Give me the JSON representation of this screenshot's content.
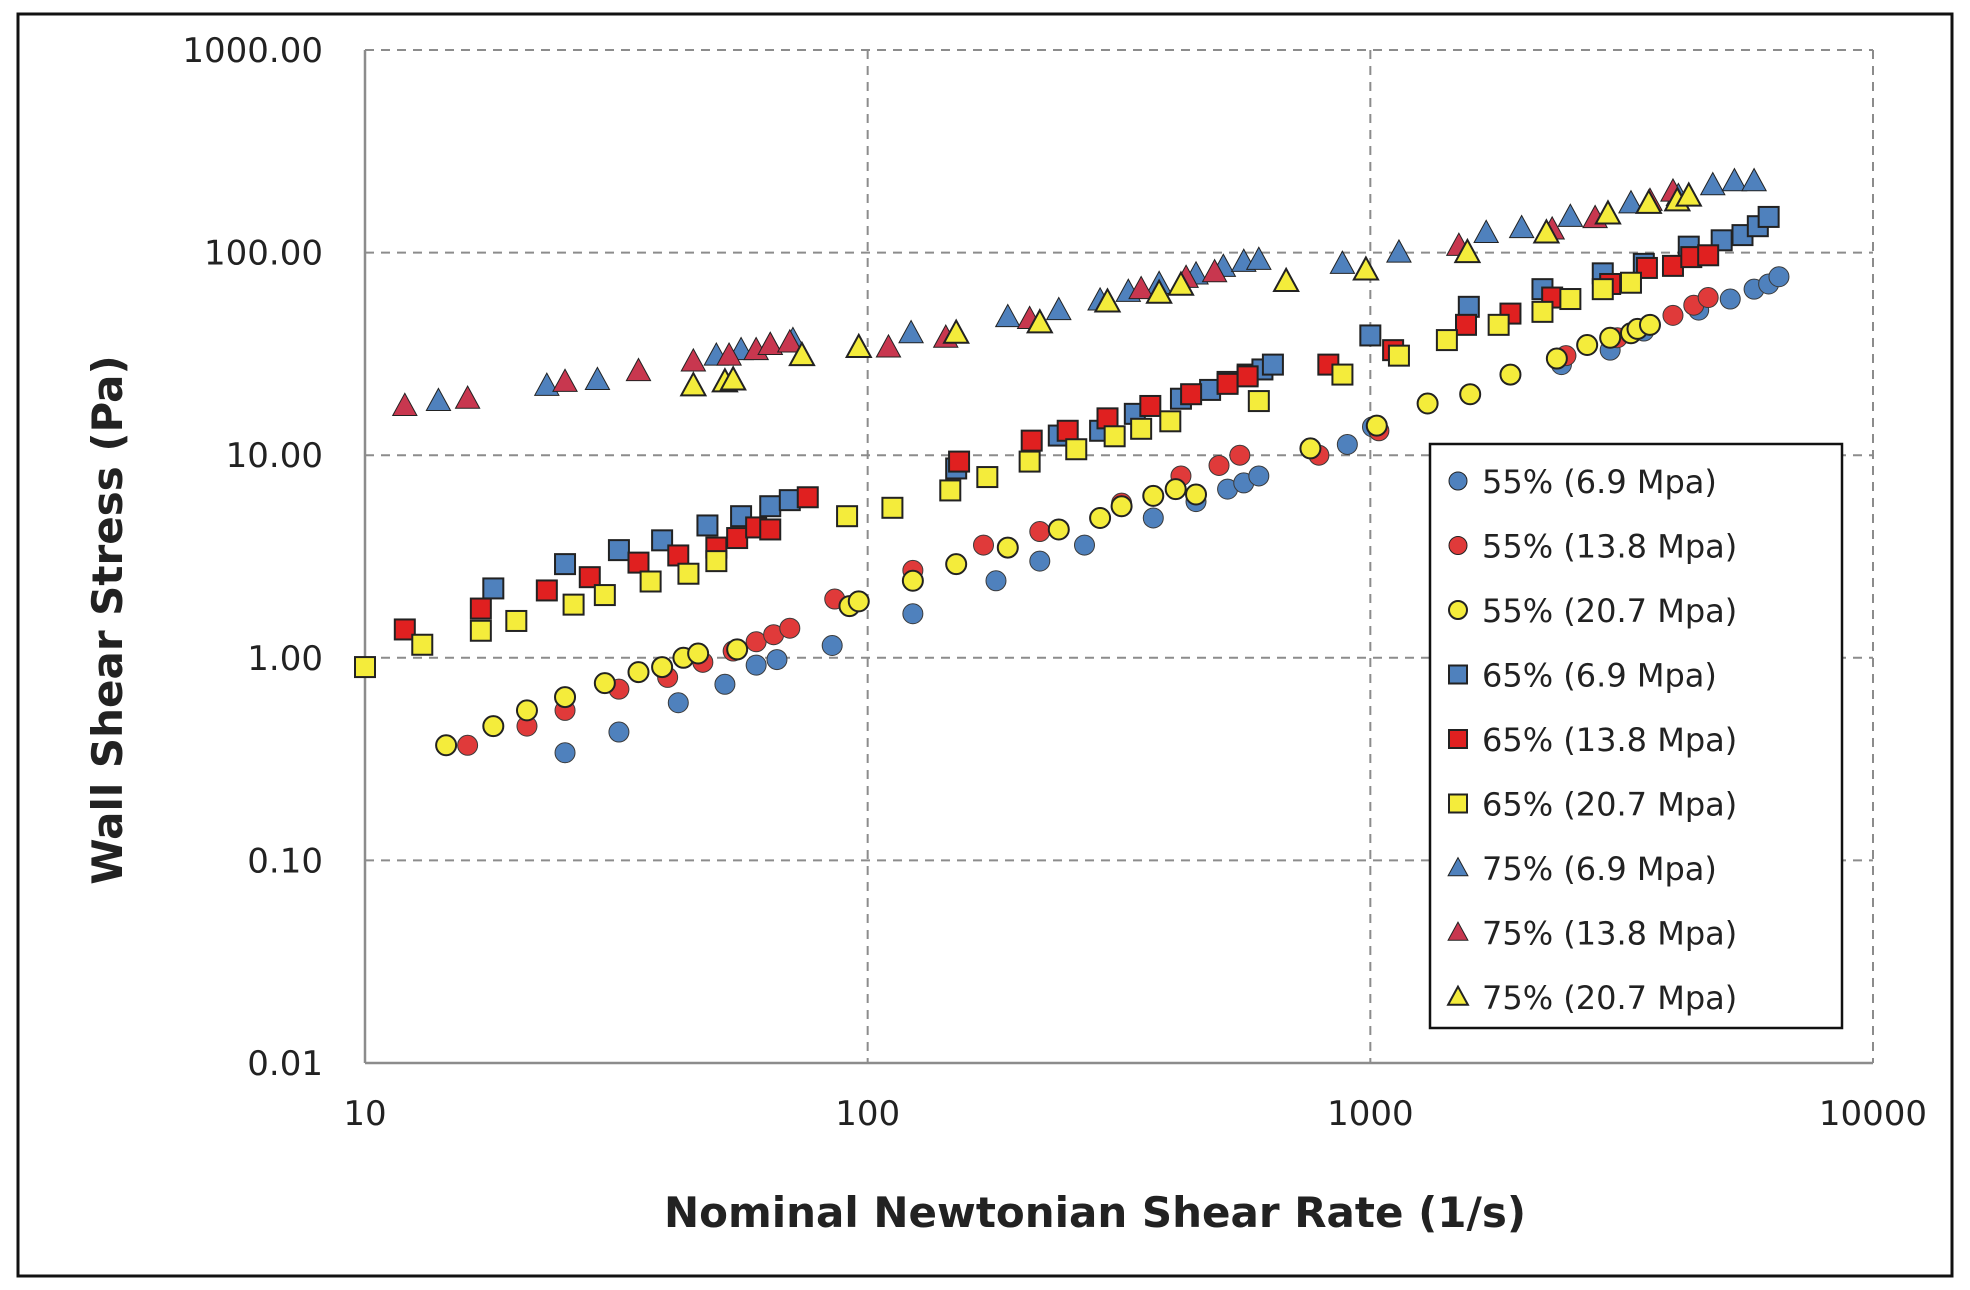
{
  "chart_data": {
    "type": "scatter",
    "title": "",
    "xlabel": "Nominal Newtonian Shear Rate (1/s)",
    "ylabel": "Wall Shear Stress (Pa)",
    "xscale": "log",
    "yscale": "log",
    "xlim": [
      10,
      10000
    ],
    "ylim": [
      0.01,
      1000
    ],
    "x_ticks": [
      "10",
      "100",
      "1000",
      "10000"
    ],
    "y_ticks": [
      "0.01",
      "0.10",
      "1.00",
      "10.00",
      "100.00",
      "1000.00"
    ],
    "grid": true,
    "legend_position": "right-center",
    "series": [
      {
        "name": "55% (6.9 Mpa)",
        "marker": "circle",
        "color": "#4f81bd",
        "x": [
          25,
          32,
          42,
          52,
          60,
          66,
          85,
          123,
          180,
          220,
          270,
          370,
          450,
          520,
          560,
          600,
          900,
          1010,
          2400,
          3000,
          3500,
          4500,
          5200,
          5800,
          6200,
          6500
        ],
        "y": [
          0.34,
          0.43,
          0.6,
          0.74,
          0.92,
          0.98,
          1.15,
          1.65,
          2.4,
          3.0,
          3.6,
          4.9,
          5.9,
          6.8,
          7.3,
          7.9,
          11.3,
          13.8,
          28,
          33,
          41,
          52,
          59,
          66,
          70,
          76
        ]
      },
      {
        "name": "55% (13.8 Mpa)",
        "marker": "circle",
        "color": "#e03a3a",
        "x": [
          16,
          21,
          25,
          32,
          40,
          47,
          54,
          60,
          65,
          70,
          86,
          123,
          170,
          220,
          320,
          420,
          500,
          550,
          790,
          1040,
          2450,
          3100,
          3600,
          4000,
          4400,
          4700
        ],
        "y": [
          0.37,
          0.46,
          0.55,
          0.7,
          0.8,
          0.95,
          1.08,
          1.2,
          1.3,
          1.4,
          1.95,
          2.7,
          3.6,
          4.2,
          5.8,
          7.9,
          8.9,
          10,
          10,
          13.2,
          31,
          38,
          44,
          49,
          55,
          60
        ]
      },
      {
        "name": "55% (20.7 Mpa)",
        "marker": "circle",
        "color": "#f4ec3b",
        "x": [
          14.5,
          18,
          21,
          25,
          30,
          35,
          39,
          43,
          46,
          55,
          92,
          96,
          123,
          150,
          190,
          240,
          290,
          320,
          370,
          410,
          450,
          760,
          1030,
          1300,
          1580,
          1900,
          2350,
          2700,
          3000,
          3300,
          3400,
          3600
        ],
        "y": [
          0.37,
          0.46,
          0.55,
          0.64,
          0.75,
          0.85,
          0.9,
          1.0,
          1.05,
          1.1,
          1.8,
          1.9,
          2.4,
          2.9,
          3.5,
          4.3,
          4.9,
          5.6,
          6.3,
          6.8,
          6.4,
          10.8,
          14,
          18,
          20,
          25,
          30,
          35,
          38,
          40,
          42,
          44
        ]
      },
      {
        "name": "65% (6.9 Mpa)",
        "marker": "square",
        "color": "#4f81bd",
        "x": [
          18,
          25,
          32,
          39,
          48,
          56,
          64,
          70,
          150,
          240,
          290,
          340,
          420,
          480,
          520,
          570,
          610,
          640,
          1000,
          1570,
          2200,
          2900,
          3500,
          4300,
          5000,
          5500,
          5900,
          6200
        ],
        "y": [
          2.2,
          2.9,
          3.4,
          3.8,
          4.5,
          5.0,
          5.6,
          6.0,
          8.6,
          12.5,
          13.2,
          16,
          19,
          21,
          23,
          25,
          26.5,
          28,
          39,
          54,
          66,
          79,
          88,
          107,
          115,
          122,
          135,
          150
        ]
      },
      {
        "name": "65% (13.8 Mpa)",
        "marker": "square",
        "color": "#e02020",
        "x": [
          12,
          17,
          23,
          28,
          35,
          42,
          50,
          55,
          60,
          64,
          76,
          152,
          212,
          250,
          300,
          365,
          440,
          520,
          570,
          825,
          1110,
          1550,
          1900,
          2300,
          3000,
          3550,
          4000,
          4350,
          4700
        ],
        "y": [
          1.38,
          1.75,
          2.15,
          2.5,
          2.95,
          3.2,
          3.5,
          3.9,
          4.4,
          4.3,
          6.2,
          9.3,
          11.8,
          13.2,
          15.2,
          17.5,
          20,
          22.5,
          24.5,
          28,
          33,
          44,
          50,
          60,
          70,
          84,
          86,
          95,
          97
        ]
      },
      {
        "name": "65% (20.7 Mpa)",
        "marker": "square",
        "color": "#f4ec3b",
        "x": [
          10,
          13,
          17,
          20,
          26,
          30,
          37,
          44,
          50,
          91,
          112,
          146,
          173,
          210,
          260,
          310,
          350,
          400,
          600,
          880,
          1140,
          1420,
          1800,
          2200,
          2500,
          2900,
          3300
        ],
        "y": [
          0.9,
          1.16,
          1.36,
          1.52,
          1.83,
          2.04,
          2.38,
          2.6,
          3.0,
          5.0,
          5.5,
          6.7,
          7.8,
          9.3,
          10.7,
          12.4,
          13.5,
          14.7,
          18.5,
          25,
          31,
          37,
          44,
          51,
          59,
          66,
          71
        ]
      },
      {
        "name": "75% (6.9 Mpa)",
        "marker": "triangle",
        "color": "#4f81bd",
        "x": [
          14,
          23,
          29,
          50,
          56,
          64,
          71,
          122,
          190,
          240,
          290,
          330,
          380,
          450,
          510,
          560,
          600,
          880,
          1140,
          1700,
          2000,
          2500,
          3300,
          4100,
          4800,
          5300,
          5800
        ],
        "y": [
          18.5,
          22,
          23.5,
          31,
          33,
          35,
          37,
          40,
          48,
          52,
          58,
          64,
          70,
          78,
          85,
          90,
          92,
          88,
          100,
          125,
          132,
          150,
          175,
          190,
          215,
          225,
          225
        ]
      },
      {
        "name": "75% (13.8 Mpa)",
        "marker": "triangle",
        "color": "#c8374f",
        "x": [
          12,
          16,
          25,
          35,
          45,
          53,
          60,
          64,
          70,
          110,
          143,
          210,
          350,
          430,
          490,
          1500,
          2300,
          2800,
          3600,
          4000
        ],
        "y": [
          17.5,
          19,
          23,
          26,
          29,
          31,
          33,
          35,
          36,
          34,
          38,
          47,
          66,
          75,
          80,
          108,
          130,
          148,
          180,
          200
        ]
      },
      {
        "name": "75% (20.7 Mpa)",
        "marker": "triangle",
        "color": "#f4ec3b",
        "x": [
          45,
          52,
          54,
          74,
          96,
          150,
          220,
          300,
          380,
          420,
          680,
          980,
          1560,
          2240,
          2970,
          3580,
          4080,
          4300
        ],
        "y": [
          22,
          23,
          23.5,
          31,
          34,
          40,
          45,
          57,
          63,
          69,
          72,
          82,
          100,
          125,
          155,
          175,
          180,
          190
        ]
      }
    ]
  }
}
